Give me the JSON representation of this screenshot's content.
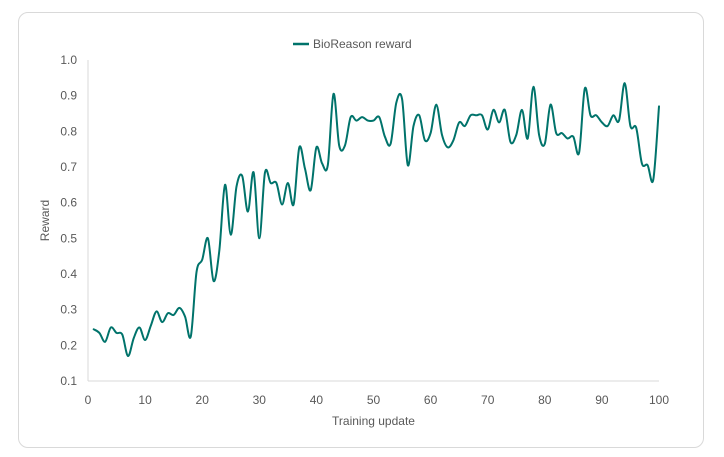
{
  "chart_data": {
    "type": "line",
    "title": "",
    "xlabel": "Training update",
    "ylabel": "Reward",
    "xlim": [
      0,
      100
    ],
    "ylim": [
      0.1,
      1.0
    ],
    "x_ticks": [
      "0",
      "10",
      "20",
      "30",
      "40",
      "50",
      "60",
      "70",
      "80",
      "90",
      "100"
    ],
    "y_ticks": [
      "0.1",
      "0.2",
      "0.3",
      "0.4",
      "0.5",
      "0.6",
      "0.7",
      "0.8",
      "0.9",
      "1.0"
    ],
    "grid": false,
    "legend_position": "top-center",
    "series": [
      {
        "name": "BioReason reward",
        "color": "#00736b",
        "x": [
          1,
          2,
          3,
          4,
          5,
          6,
          7,
          8,
          9,
          10,
          11,
          12,
          13,
          14,
          15,
          16,
          17,
          18,
          19,
          20,
          21,
          22,
          23,
          24,
          25,
          26,
          27,
          28,
          29,
          30,
          31,
          32,
          33,
          34,
          35,
          36,
          37,
          38,
          39,
          40,
          41,
          42,
          43,
          44,
          45,
          46,
          47,
          48,
          49,
          50,
          51,
          52,
          53,
          54,
          55,
          56,
          57,
          58,
          59,
          60,
          61,
          62,
          63,
          64,
          65,
          66,
          67,
          68,
          69,
          70,
          71,
          72,
          73,
          74,
          75,
          76,
          77,
          78,
          79,
          80,
          81,
          82,
          83,
          84,
          85,
          86,
          87,
          88,
          89,
          90,
          91,
          92,
          93,
          94,
          95,
          96,
          97,
          98,
          99,
          100
        ],
        "values": [
          0.245,
          0.235,
          0.21,
          0.25,
          0.235,
          0.23,
          0.17,
          0.22,
          0.25,
          0.215,
          0.255,
          0.295,
          0.265,
          0.29,
          0.285,
          0.305,
          0.28,
          0.225,
          0.405,
          0.44,
          0.5,
          0.38,
          0.465,
          0.65,
          0.51,
          0.645,
          0.675,
          0.575,
          0.685,
          0.5,
          0.685,
          0.655,
          0.655,
          0.595,
          0.655,
          0.595,
          0.755,
          0.695,
          0.635,
          0.755,
          0.71,
          0.705,
          0.905,
          0.76,
          0.76,
          0.84,
          0.83,
          0.84,
          0.83,
          0.83,
          0.84,
          0.785,
          0.765,
          0.88,
          0.89,
          0.705,
          0.815,
          0.845,
          0.775,
          0.795,
          0.875,
          0.79,
          0.755,
          0.775,
          0.825,
          0.815,
          0.845,
          0.845,
          0.845,
          0.805,
          0.86,
          0.825,
          0.86,
          0.77,
          0.79,
          0.86,
          0.78,
          0.925,
          0.79,
          0.765,
          0.875,
          0.795,
          0.795,
          0.78,
          0.785,
          0.74,
          0.92,
          0.845,
          0.845,
          0.825,
          0.815,
          0.845,
          0.83,
          0.935,
          0.815,
          0.81,
          0.71,
          0.705,
          0.665,
          0.87
        ]
      }
    ]
  }
}
